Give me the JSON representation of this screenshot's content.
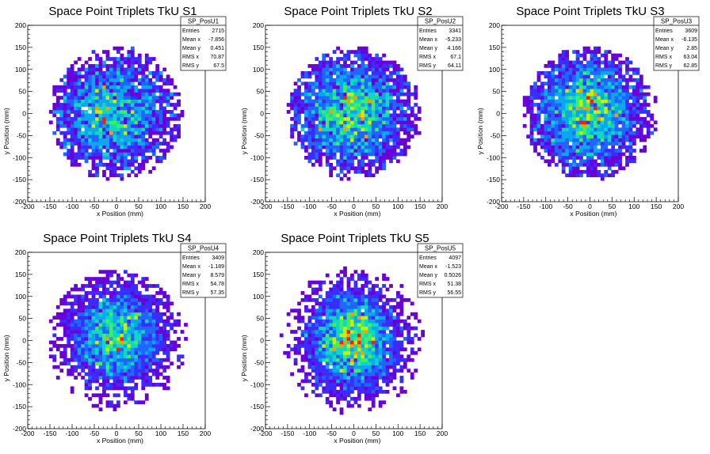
{
  "chart_data": [
    {
      "type": "heatmap",
      "title": "Space Point Triplets TkU S1",
      "xlabel": "x Position (mm)",
      "ylabel": "y Position (mm)",
      "xlim": [
        -200,
        200
      ],
      "ylim": [
        -200,
        200
      ],
      "ticks": [
        -200,
        -150,
        -100,
        -50,
        0,
        50,
        100,
        150,
        200
      ],
      "grid": false,
      "stats_box": {
        "name": "SP_PosU1",
        "rows": [
          {
            "label": "Entries",
            "value": "2715"
          },
          {
            "label": "Mean x",
            "value": "-7.856"
          },
          {
            "label": "Mean y",
            "value": "0.451"
          },
          {
            "label": "RMS x",
            "value": "70.87"
          },
          {
            "label": "RMS y",
            "value": "67.5"
          }
        ]
      },
      "distribution": {
        "entries": 2715,
        "mean_x": -7.856,
        "mean_y": 0.451,
        "rms_x": 70.87,
        "rms_y": 67.5,
        "radius": 150,
        "bin_width": 8
      }
    },
    {
      "type": "heatmap",
      "title": "Space Point Triplets TkU S2",
      "xlabel": "x Position (mm)",
      "ylabel": "y Position (mm)",
      "xlim": [
        -200,
        200
      ],
      "ylim": [
        -200,
        200
      ],
      "ticks": [
        -200,
        -150,
        -100,
        -50,
        0,
        50,
        100,
        150,
        200
      ],
      "grid": false,
      "stats_box": {
        "name": "SP_PosU2",
        "rows": [
          {
            "label": "Entries",
            "value": "3341"
          },
          {
            "label": "Mean x",
            "value": "-5.233"
          },
          {
            "label": "Mean y",
            "value": "4.166"
          },
          {
            "label": "RMS x",
            "value": "67.1"
          },
          {
            "label": "RMS y",
            "value": "64.11"
          }
        ]
      },
      "distribution": {
        "entries": 3341,
        "mean_x": -5.233,
        "mean_y": 4.166,
        "rms_x": 67.1,
        "rms_y": 64.11,
        "radius": 150,
        "bin_width": 8
      }
    },
    {
      "type": "heatmap",
      "title": "Space Point Triplets TkU S3",
      "xlabel": "x Position (mm)",
      "ylabel": "y Position (mm)",
      "xlim": [
        -200,
        200
      ],
      "ylim": [
        -200,
        200
      ],
      "ticks": [
        -200,
        -150,
        -100,
        -50,
        0,
        50,
        100,
        150,
        200
      ],
      "grid": false,
      "stats_box": {
        "name": "SP_PosU3",
        "rows": [
          {
            "label": "Entries",
            "value": "3609"
          },
          {
            "label": "Mean x",
            "value": "-6.135"
          },
          {
            "label": "Mean y",
            "value": "2.85"
          },
          {
            "label": "RMS x",
            "value": "63.04"
          },
          {
            "label": "RMS y",
            "value": "62.85"
          }
        ]
      },
      "distribution": {
        "entries": 3609,
        "mean_x": -6.135,
        "mean_y": 2.85,
        "rms_x": 63.04,
        "rms_y": 62.85,
        "radius": 150,
        "bin_width": 8
      }
    },
    {
      "type": "heatmap",
      "title": "Space Point Triplets TkU S4",
      "xlabel": "x Position (mm)",
      "ylabel": "y Position (mm)",
      "xlim": [
        -200,
        200
      ],
      "ylim": [
        -200,
        200
      ],
      "ticks": [
        -200,
        -150,
        -100,
        -50,
        0,
        50,
        100,
        150,
        200
      ],
      "grid": false,
      "stats_box": {
        "name": "SP_PosU4",
        "rows": [
          {
            "label": "Entries",
            "value": "3409"
          },
          {
            "label": "Mean x",
            "value": "-1.189"
          },
          {
            "label": "Mean y",
            "value": "8.579"
          },
          {
            "label": "RMS x",
            "value": "54.78"
          },
          {
            "label": "RMS y",
            "value": "57.35"
          }
        ]
      },
      "distribution": {
        "entries": 3409,
        "mean_x": -1.189,
        "mean_y": 8.579,
        "rms_x": 54.78,
        "rms_y": 57.35,
        "radius": 160,
        "bin_width": 8
      }
    },
    {
      "type": "heatmap",
      "title": "Space Point Triplets TkU S5",
      "xlabel": "x Position (mm)",
      "ylabel": "y Position (mm)",
      "xlim": [
        -200,
        200
      ],
      "ylim": [
        -200,
        200
      ],
      "ticks": [
        -200,
        -150,
        -100,
        -50,
        0,
        50,
        100,
        150,
        200
      ],
      "grid": false,
      "stats_box": {
        "name": "SP_PosU5",
        "rows": [
          {
            "label": "Entries",
            "value": "4097"
          },
          {
            "label": "Mean x",
            "value": "-1.523"
          },
          {
            "label": "Mean y",
            "value": "0.5026"
          },
          {
            "label": "RMS x",
            "value": "51.38"
          },
          {
            "label": "RMS y",
            "value": "56.55"
          }
        ]
      },
      "distribution": {
        "entries": 4097,
        "mean_x": -1.523,
        "mean_y": 0.5026,
        "rms_x": 51.38,
        "rms_y": 56.55,
        "radius": 165,
        "bin_width": 8
      }
    }
  ],
  "colors": {
    "palette": [
      "#6a00d8",
      "#3a2cff",
      "#1f66ff",
      "#0aa6f0",
      "#10d8c0",
      "#40ee60",
      "#c8f000",
      "#ff9a00",
      "#ff1a00"
    ],
    "frame": "#000000",
    "background": "#ffffff"
  }
}
